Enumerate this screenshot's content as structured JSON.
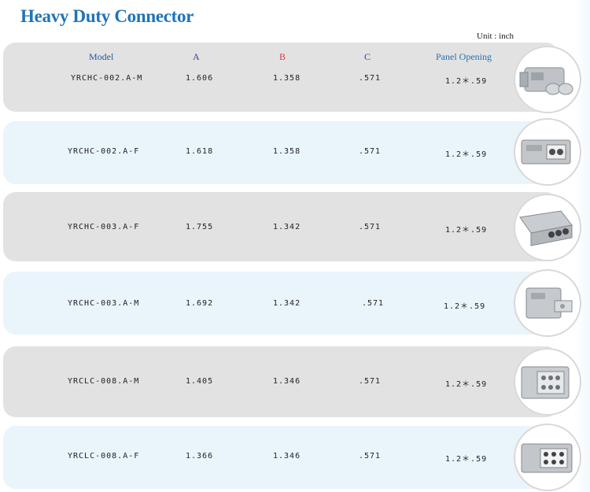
{
  "title": "Heavy Duty Connector",
  "unit": "Unit : inch",
  "headers": {
    "model": "Model",
    "a": "A",
    "b": "B",
    "c": "C",
    "panel": "Panel Opening"
  },
  "colors": {
    "title": "#1f74b8",
    "header_model": "#2b55a8",
    "header_a": "#3a3aa0",
    "header_b": "#d23b3b",
    "header_c": "#3a3aa0",
    "header_panel": "#2270b0"
  },
  "rows": [
    {
      "model": "YRCHC-002.A-M",
      "a": "1.606",
      "b": "1.358",
      "c": ".571",
      "panel": "1.2＊.59",
      "icon": "connector-2pin-male-icon"
    },
    {
      "model": "YRCHC-002.A-F",
      "a": "1.618",
      "b": "1.358",
      "c": ".571",
      "panel": "1.2＊.59",
      "icon": "connector-2pin-female-icon"
    },
    {
      "model": "YRCHC-003.A-F",
      "a": "1.755",
      "b": "1.342",
      "c": ".571",
      "panel": "1.2＊.59",
      "icon": "connector-3pin-female-icon"
    },
    {
      "model": "YRCHC-003.A-M",
      "a": "1.692",
      "b": "1.342",
      "c": ".571",
      "panel": "1.2＊.59",
      "icon": "connector-3pin-male-icon"
    },
    {
      "model": "YRCLC-008.A-M",
      "a": "1.405",
      "b": "1.346",
      "c": ".571",
      "panel": "1.2＊.59",
      "icon": "connector-8pin-male-icon"
    },
    {
      "model": "YRCLC-008.A-F",
      "a": "1.366",
      "b": "1.346",
      "c": ".571",
      "panel": "1.2＊.59",
      "icon": "connector-8pin-female-icon"
    }
  ]
}
